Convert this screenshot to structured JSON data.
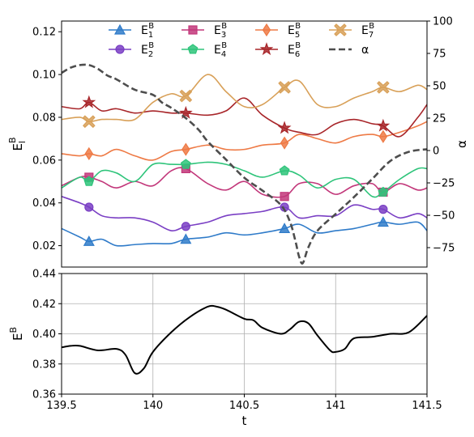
{
  "chart_data": [
    {
      "type": "line",
      "xlim": [
        139.5,
        141.5
      ],
      "ylim": [
        0.01,
        0.125
      ],
      "ylabel": "E_l^B",
      "y_ticks": [
        0.02,
        0.04,
        0.06,
        0.08,
        0.1,
        0.12
      ],
      "y_tick_labels": [
        "0.02",
        "0.04",
        "0.06",
        "0.08",
        "0.10",
        "0.12"
      ],
      "right_axis": {
        "label": "α",
        "ylim": [
          -90,
          100
        ],
        "ticks": [
          -75,
          -50,
          -25,
          0,
          25,
          50,
          75,
          100
        ],
        "tick_labels": [
          "−75",
          "−50",
          "−25",
          "0",
          "25",
          "50",
          "75",
          "100"
        ]
      },
      "grid": false,
      "legend_position": "top",
      "marker_x": [
        139.65,
        140.18,
        140.72,
        141.26
      ],
      "series": [
        {
          "name": "E_1^B",
          "legend_base": "E",
          "legend_sup": "B",
          "legend_sub": "1",
          "color": "#2f7bc9",
          "marker": "triangle",
          "x": [
            139.5,
            139.6,
            139.65,
            139.72,
            139.8,
            139.9,
            140.0,
            140.1,
            140.18,
            140.3,
            140.4,
            140.5,
            140.6,
            140.72,
            140.8,
            140.9,
            141.0,
            141.1,
            141.2,
            141.26,
            141.35,
            141.45,
            141.5
          ],
          "values": [
            0.028,
            0.024,
            0.022,
            0.023,
            0.02,
            0.0205,
            0.021,
            0.021,
            0.023,
            0.024,
            0.026,
            0.025,
            0.026,
            0.028,
            0.03,
            0.026,
            0.027,
            0.028,
            0.03,
            0.031,
            0.03,
            0.031,
            0.027
          ]
        },
        {
          "name": "E_2^B",
          "legend_base": "E",
          "legend_sup": "B",
          "legend_sub": "2",
          "color": "#7a3fc4",
          "marker": "circle",
          "x": [
            139.5,
            139.6,
            139.65,
            139.72,
            139.8,
            139.9,
            140.0,
            140.1,
            140.18,
            140.3,
            140.4,
            140.5,
            140.6,
            140.72,
            140.8,
            140.9,
            141.0,
            141.1,
            141.2,
            141.26,
            141.35,
            141.45,
            141.5
          ],
          "values": [
            0.043,
            0.04,
            0.038,
            0.034,
            0.033,
            0.033,
            0.031,
            0.027,
            0.029,
            0.031,
            0.034,
            0.035,
            0.036,
            0.038,
            0.033,
            0.034,
            0.034,
            0.039,
            0.037,
            0.037,
            0.033,
            0.035,
            0.033
          ]
        },
        {
          "name": "E_3^B",
          "legend_base": "E",
          "legend_sup": "B",
          "legend_sub": "3",
          "color": "#c2377a",
          "marker": "square",
          "x": [
            139.5,
            139.6,
            139.65,
            139.72,
            139.8,
            139.9,
            140.0,
            140.1,
            140.18,
            140.3,
            140.4,
            140.5,
            140.6,
            140.72,
            140.8,
            140.9,
            141.0,
            141.1,
            141.2,
            141.26,
            141.35,
            141.45,
            141.5
          ],
          "values": [
            0.048,
            0.052,
            0.052,
            0.05,
            0.047,
            0.05,
            0.048,
            0.055,
            0.056,
            0.049,
            0.046,
            0.05,
            0.044,
            0.043,
            0.049,
            0.049,
            0.044,
            0.048,
            0.049,
            0.045,
            0.049,
            0.046,
            0.047
          ]
        },
        {
          "name": "E_4^B",
          "legend_base": "E",
          "legend_sup": "B",
          "legend_sub": "4",
          "color": "#2ec47a",
          "marker": "pentagon",
          "x": [
            139.5,
            139.6,
            139.65,
            139.72,
            139.8,
            139.9,
            140.0,
            140.1,
            140.18,
            140.3,
            140.4,
            140.5,
            140.6,
            140.72,
            140.8,
            140.9,
            141.0,
            141.1,
            141.2,
            141.26,
            141.35,
            141.45,
            141.5
          ],
          "values": [
            0.047,
            0.052,
            0.05,
            0.055,
            0.054,
            0.05,
            0.058,
            0.058,
            0.058,
            0.059,
            0.058,
            0.055,
            0.052,
            0.055,
            0.053,
            0.047,
            0.051,
            0.051,
            0.043,
            0.045,
            0.051,
            0.056,
            0.056
          ]
        },
        {
          "name": "E_5^B",
          "legend_base": "E",
          "legend_sup": "B",
          "legend_sub": "5",
          "color": "#ee7a45",
          "marker": "diamond",
          "x": [
            139.5,
            139.6,
            139.65,
            139.72,
            139.8,
            139.9,
            140.0,
            140.1,
            140.18,
            140.3,
            140.4,
            140.5,
            140.6,
            140.72,
            140.8,
            140.9,
            141.0,
            141.1,
            141.2,
            141.26,
            141.35,
            141.45,
            141.5
          ],
          "values": [
            0.063,
            0.062,
            0.063,
            0.062,
            0.065,
            0.062,
            0.06,
            0.064,
            0.065,
            0.067,
            0.065,
            0.065,
            0.067,
            0.068,
            0.072,
            0.07,
            0.068,
            0.071,
            0.072,
            0.071,
            0.073,
            0.076,
            0.078
          ]
        },
        {
          "name": "E_6^B",
          "legend_base": "E",
          "legend_sup": "B",
          "legend_sub": "6",
          "color": "#a8262a",
          "marker": "star",
          "x": [
            139.5,
            139.6,
            139.65,
            139.72,
            139.8,
            139.9,
            140.0,
            140.1,
            140.18,
            140.3,
            140.4,
            140.5,
            140.6,
            140.72,
            140.8,
            140.9,
            141.0,
            141.1,
            141.2,
            141.26,
            141.35,
            141.45,
            141.5
          ],
          "values": [
            0.085,
            0.084,
            0.087,
            0.083,
            0.084,
            0.082,
            0.083,
            0.082,
            0.082,
            0.081,
            0.083,
            0.089,
            0.081,
            0.075,
            0.073,
            0.072,
            0.077,
            0.079,
            0.077,
            0.076,
            0.071,
            0.08,
            0.086
          ]
        },
        {
          "name": "E_7^B",
          "legend_base": "E",
          "legend_sup": "B",
          "legend_sub": "7",
          "color": "#d8a058",
          "marker": "xfilled",
          "x": [
            139.5,
            139.6,
            139.65,
            139.72,
            139.8,
            139.9,
            140.0,
            140.1,
            140.18,
            140.3,
            140.4,
            140.5,
            140.6,
            140.72,
            140.8,
            140.9,
            141.0,
            141.1,
            141.2,
            141.26,
            141.35,
            141.45,
            141.5
          ],
          "values": [
            0.079,
            0.08,
            0.078,
            0.079,
            0.079,
            0.079,
            0.087,
            0.091,
            0.09,
            0.1,
            0.092,
            0.085,
            0.086,
            0.094,
            0.097,
            0.086,
            0.085,
            0.089,
            0.092,
            0.094,
            0.092,
            0.095,
            0.093
          ]
        },
        {
          "name": "α",
          "legend_base": "α",
          "legend_sup": "",
          "legend_sub": "",
          "color": "#4d4d4d",
          "dashed": true,
          "axis": "right",
          "x": [
            139.5,
            139.55,
            139.6,
            139.65,
            139.7,
            139.75,
            139.8,
            139.9,
            140.0,
            140.05,
            140.1,
            140.18,
            140.25,
            140.3,
            140.4,
            140.5,
            140.6,
            140.7,
            140.75,
            140.78,
            140.8,
            140.82,
            140.85,
            140.9,
            141.0,
            141.1,
            141.2,
            141.3,
            141.4,
            141.5
          ],
          "values": [
            60,
            64,
            66,
            66,
            63,
            58,
            55,
            47,
            43,
            37,
            33,
            25,
            16,
            7,
            -7,
            -21,
            -31,
            -42,
            -55,
            -70,
            -82,
            -87,
            -75,
            -62,
            -49,
            -36,
            -22,
            -8,
            -1,
            1
          ]
        }
      ]
    },
    {
      "type": "line",
      "xlim": [
        139.5,
        141.5
      ],
      "ylim": [
        0.36,
        0.44
      ],
      "xlabel": "t",
      "ylabel": "E^B",
      "grid": true,
      "x_ticks": [
        139.5,
        140,
        140.5,
        141,
        141.5
      ],
      "x_tick_labels": [
        "139.5",
        "140",
        "140.5",
        "141",
        "141.5"
      ],
      "y_ticks": [
        0.36,
        0.38,
        0.4,
        0.42,
        0.44
      ],
      "y_tick_labels": [
        "0.36",
        "0.38",
        "0.40",
        "0.42",
        "0.44"
      ],
      "series": [
        {
          "color": "#000000",
          "x": [
            139.5,
            139.55,
            139.6,
            139.7,
            139.8,
            139.85,
            139.9,
            139.95,
            140.0,
            140.1,
            140.2,
            140.3,
            140.35,
            140.4,
            140.5,
            140.55,
            140.6,
            140.7,
            140.75,
            140.8,
            140.85,
            140.9,
            140.97,
            141.0,
            141.05,
            141.1,
            141.2,
            141.3,
            141.4,
            141.5
          ],
          "values": [
            0.391,
            0.392,
            0.392,
            0.389,
            0.39,
            0.386,
            0.374,
            0.377,
            0.388,
            0.401,
            0.411,
            0.418,
            0.418,
            0.416,
            0.41,
            0.409,
            0.404,
            0.4,
            0.403,
            0.408,
            0.407,
            0.399,
            0.389,
            0.388,
            0.39,
            0.397,
            0.398,
            0.4,
            0.401,
            0.412
          ]
        }
      ]
    }
  ]
}
